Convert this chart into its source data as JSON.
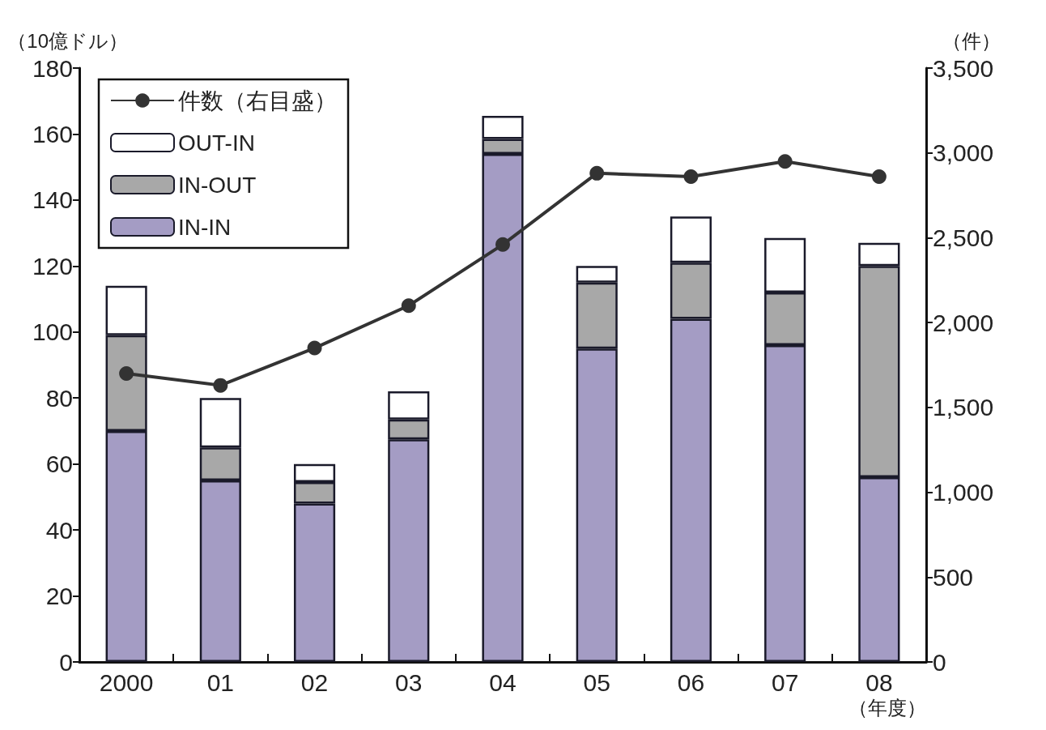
{
  "chart_data": {
    "type": "bar",
    "stacked": true,
    "ylabel": "（10億ドル）",
    "y2label": "（件）",
    "xlabel": "（年度）",
    "categories": [
      "2000",
      "01",
      "02",
      "03",
      "04",
      "05",
      "06",
      "07",
      "08"
    ],
    "series": [
      {
        "name": "IN-IN",
        "color": "#a49cc4",
        "values": [
          70,
          55,
          48,
          67.5,
          154,
          95,
          104,
          96,
          56
        ]
      },
      {
        "name": "IN-OUT",
        "color": "#a8a8a8",
        "values": [
          29,
          10,
          6.5,
          6,
          4.5,
          20,
          17,
          16,
          64
        ]
      },
      {
        "name": "OUT-IN",
        "color": "#ffffff",
        "values": [
          15,
          15,
          5.5,
          8.5,
          7,
          5,
          14,
          16.5,
          7
        ]
      },
      {
        "name": "件数（右目盛）",
        "type": "line",
        "axis": "y2",
        "color": "#333333",
        "values": [
          1700,
          1630,
          1850,
          2100,
          2460,
          2880,
          2860,
          2950,
          2860
        ]
      }
    ],
    "ylim": [
      0,
      180
    ],
    "yticks": [
      0,
      20,
      40,
      60,
      80,
      100,
      120,
      140,
      160,
      180
    ],
    "y2lim": [
      0,
      3500
    ],
    "y2ticks": [
      0,
      500,
      {
        "value": 1000,
        "label": "1,000"
      },
      {
        "value": 1500,
        "label": "1,500"
      },
      {
        "value": 2000,
        "label": "2,000"
      },
      {
        "value": 2500,
        "label": "2,500"
      },
      {
        "value": 3000,
        "label": "3,000"
      },
      {
        "value": 3500,
        "label": "3,500"
      }
    ],
    "legend": "top left",
    "grid": false,
    "marker": "circle",
    "line_style": "solid"
  }
}
